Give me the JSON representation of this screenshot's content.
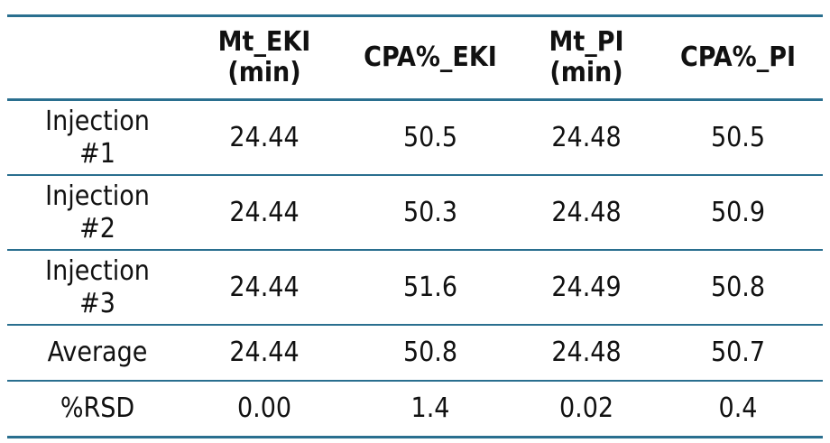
{
  "table": {
    "headers": [
      "",
      "Mt_EKI (min)",
      "CPA%_EKI",
      "Mt_PI (min)",
      "CPA%_PI"
    ],
    "header_lines": [
      [
        ""
      ],
      [
        "Mt_EKI",
        "(min)"
      ],
      [
        "CPA%_EKI"
      ],
      [
        "Mt_PI",
        "(min)"
      ],
      [
        "CPA%_PI"
      ]
    ],
    "rows": [
      {
        "label_lines": [
          "Injection",
          "#1"
        ],
        "values": [
          "24.44",
          "50.5",
          "24.48",
          "50.5"
        ]
      },
      {
        "label_lines": [
          "Injection",
          "#2"
        ],
        "values": [
          "24.44",
          "50.3",
          "24.48",
          "50.9"
        ]
      },
      {
        "label_lines": [
          "Injection",
          "#3"
        ],
        "values": [
          "24.44",
          "51.6",
          "24.49",
          "50.8"
        ]
      },
      {
        "label_lines": [
          "Average"
        ],
        "values": [
          "24.44",
          "50.8",
          "24.48",
          "50.7"
        ]
      },
      {
        "label_lines": [
          "%RSD"
        ],
        "values": [
          "0.00",
          "1.4",
          "0.02",
          "0.4"
        ]
      }
    ],
    "border_color": "#2a6f8f"
  }
}
